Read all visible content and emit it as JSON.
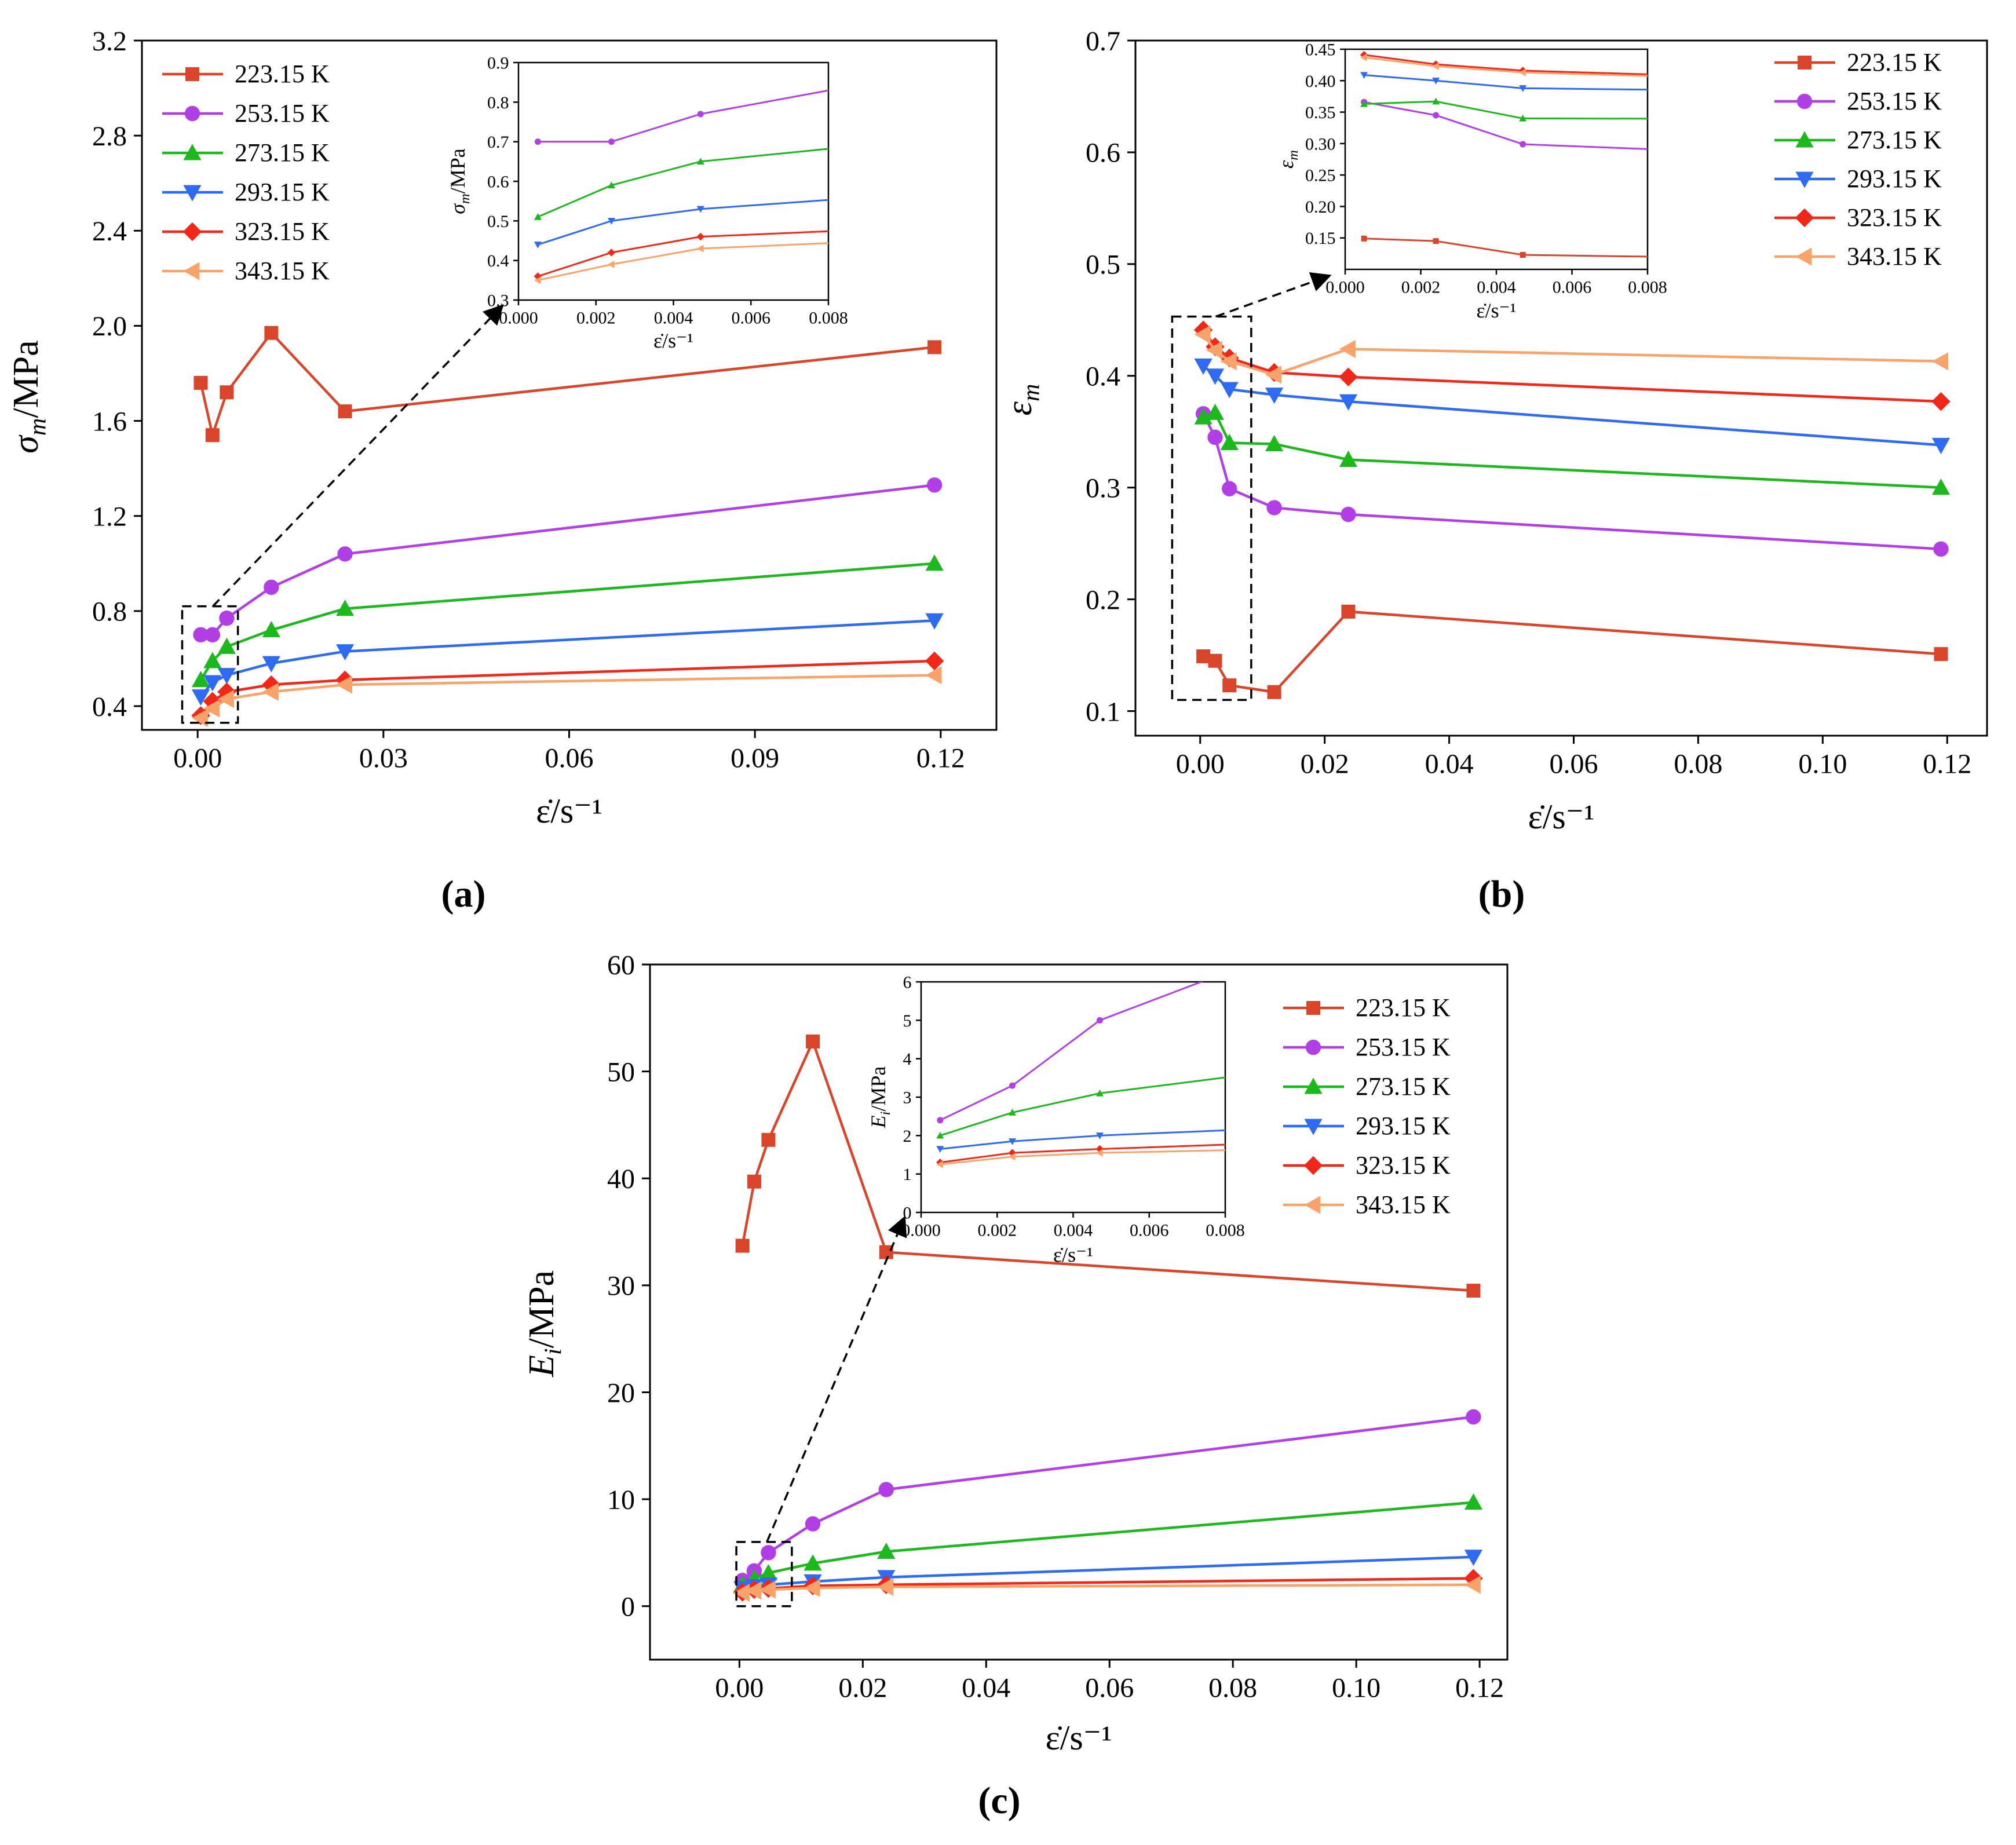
{
  "figure": {
    "panel_labels": [
      "(a)",
      "(b)",
      "(c)"
    ],
    "x_label": "ε̇/s⁻¹"
  },
  "series_meta": [
    {
      "name": "223.15 K",
      "color": "#D8452B",
      "marker": "square"
    },
    {
      "name": "253.15 K",
      "color": "#B23EE6",
      "marker": "circle"
    },
    {
      "name": "273.15 K",
      "color": "#1DB81D",
      "marker": "triangle-up"
    },
    {
      "name": "293.15 K",
      "color": "#2F6BF0",
      "marker": "triangle-down"
    },
    {
      "name": "323.15 K",
      "color": "#F0281A",
      "marker": "diamond"
    },
    {
      "name": "343.15 K",
      "color": "#F7A36B",
      "marker": "triangle-left"
    }
  ],
  "chart_data": [
    {
      "type": "line",
      "panel": "(a)",
      "ylabel": "σm/MPa",
      "xlabel": "ε̇/s⁻¹",
      "xlim": [
        -0.009,
        0.129
      ],
      "ylim": [
        0.3,
        3.2
      ],
      "xticks": [
        0,
        0.03,
        0.06,
        0.09,
        0.12
      ],
      "xtick_labels": [
        "0.00",
        "0.03",
        "0.06",
        "0.09",
        "0.12"
      ],
      "yticks": [
        0.4,
        0.8,
        1.2,
        1.6,
        2.0,
        2.4,
        2.8,
        3.2
      ],
      "ytick_labels": [
        "0.4",
        "0.8",
        "1.2",
        "1.6",
        "2.0",
        "2.4",
        "2.8",
        "3.2"
      ],
      "legend_position": "top-left",
      "x": [
        0.0005,
        0.0024,
        0.0047,
        0.0119,
        0.0238,
        0.119
      ],
      "series": [
        {
          "name": "223.15 K",
          "values": [
            1.76,
            1.54,
            1.72,
            1.97,
            1.64,
            1.91
          ]
        },
        {
          "name": "253.15 K",
          "values": [
            0.7,
            0.7,
            0.77,
            0.9,
            1.04,
            1.33
          ]
        },
        {
          "name": "273.15 K",
          "values": [
            0.51,
            0.59,
            0.65,
            0.72,
            0.81,
            1.0
          ]
        },
        {
          "name": "293.15 K",
          "values": [
            0.44,
            0.5,
            0.53,
            0.58,
            0.63,
            0.76
          ]
        },
        {
          "name": "323.15 K",
          "values": [
            0.36,
            0.42,
            0.46,
            0.49,
            0.51,
            0.59
          ]
        },
        {
          "name": "343.15 K",
          "values": [
            0.35,
            0.39,
            0.43,
            0.46,
            0.49,
            0.53
          ]
        }
      ],
      "zoom_box": {
        "x": [
          -0.0025,
          0.0065
        ],
        "y": [
          0.33,
          0.82
        ]
      },
      "inset": {
        "ylabel": "σm/MPa",
        "xlabel": "ε̇/s⁻¹",
        "xlim": [
          0,
          0.008
        ],
        "ylim": [
          0.3,
          0.9
        ],
        "xticks": [
          0,
          0.002,
          0.004,
          0.006,
          0.008
        ],
        "xtick_labels": [
          "0.000",
          "0.002",
          "0.004",
          "0.006",
          "0.008"
        ],
        "yticks": [
          0.3,
          0.4,
          0.5,
          0.6,
          0.7,
          0.8,
          0.9
        ],
        "ytick_labels": [
          "0.3",
          "0.4",
          "0.5",
          "0.6",
          "0.7",
          "0.8",
          "0.9"
        ]
      }
    },
    {
      "type": "line",
      "panel": "(b)",
      "ylabel": "εm",
      "xlabel": "ε̇/s⁻¹",
      "xlim": [
        -0.0104,
        0.1264
      ],
      "ylim": [
        0.078,
        0.7
      ],
      "xticks": [
        0,
        0.02,
        0.04,
        0.06,
        0.08,
        0.1,
        0.12
      ],
      "xtick_labels": [
        "0.00",
        "0.02",
        "0.04",
        "0.06",
        "0.08",
        "0.10",
        "0.12"
      ],
      "yticks": [
        0.1,
        0.2,
        0.3,
        0.4,
        0.5,
        0.6,
        0.7
      ],
      "ytick_labels": [
        "0.1",
        "0.2",
        "0.3",
        "0.4",
        "0.5",
        "0.6",
        "0.7"
      ],
      "legend_position": "top-right",
      "x": [
        0.0005,
        0.0024,
        0.0047,
        0.0119,
        0.0238,
        0.119
      ],
      "series": [
        {
          "name": "223.15 K",
          "values": [
            0.149,
            0.145,
            0.123,
            0.117,
            0.189,
            0.151
          ]
        },
        {
          "name": "253.15 K",
          "values": [
            0.366,
            0.345,
            0.299,
            0.282,
            0.276,
            0.245
          ]
        },
        {
          "name": "273.15 K",
          "values": [
            0.363,
            0.367,
            0.34,
            0.339,
            0.325,
            0.3
          ]
        },
        {
          "name": "293.15 K",
          "values": [
            0.409,
            0.4,
            0.388,
            0.383,
            0.377,
            0.338
          ]
        },
        {
          "name": "323.15 K",
          "values": [
            0.441,
            0.426,
            0.416,
            0.403,
            0.399,
            0.377
          ]
        },
        {
          "name": "343.15 K",
          "values": [
            0.437,
            0.423,
            0.413,
            0.401,
            0.424,
            0.413
          ]
        }
      ],
      "zoom_box": {
        "x": [
          -0.0045,
          0.0082
        ],
        "y": [
          0.11,
          0.453
        ]
      },
      "inset": {
        "ylabel": "εm",
        "xlabel": "ε̇/s⁻¹",
        "xlim": [
          0,
          0.008
        ],
        "ylim": [
          0.1,
          0.45
        ],
        "xticks": [
          0,
          0.002,
          0.004,
          0.006,
          0.008
        ],
        "xtick_labels": [
          "0.000",
          "0.002",
          "0.004",
          "0.006",
          "0.008"
        ],
        "yticks": [
          0.15,
          0.2,
          0.25,
          0.3,
          0.35,
          0.4,
          0.45
        ],
        "ytick_labels": [
          "0.15",
          "0.20",
          "0.25",
          "0.30",
          "0.35",
          "0.40",
          "0.45"
        ]
      }
    },
    {
      "type": "line",
      "panel": "(c)",
      "ylabel": "Ei/MPa",
      "xlabel": "ε̇/s⁻¹",
      "xlim": [
        -0.0145,
        0.1245
      ],
      "ylim": [
        -5,
        60
      ],
      "xticks": [
        0,
        0.02,
        0.04,
        0.06,
        0.08,
        0.1,
        0.12
      ],
      "xtick_labels": [
        "0.00",
        "0.02",
        "0.04",
        "0.06",
        "0.08",
        "0.10",
        "0.12"
      ],
      "yticks": [
        0,
        10,
        20,
        30,
        40,
        50,
        60
      ],
      "ytick_labels": [
        "0",
        "10",
        "20",
        "30",
        "40",
        "50",
        "60"
      ],
      "legend_position": "top-right",
      "x": [
        0.0005,
        0.0024,
        0.0047,
        0.0119,
        0.0238,
        0.119
      ],
      "series": [
        {
          "name": "223.15 K",
          "values": [
            33.7,
            39.7,
            43.6,
            52.8,
            33.1,
            29.5
          ]
        },
        {
          "name": "253.15 K",
          "values": [
            2.4,
            3.3,
            5.0,
            7.7,
            10.9,
            17.7
          ]
        },
        {
          "name": "273.15 K",
          "values": [
            2.0,
            2.6,
            3.1,
            4.0,
            5.1,
            9.7
          ]
        },
        {
          "name": "293.15 K",
          "values": [
            1.65,
            1.85,
            2.0,
            2.3,
            2.7,
            4.6
          ]
        },
        {
          "name": "323.15 K",
          "values": [
            1.3,
            1.55,
            1.65,
            1.9,
            2.0,
            2.6
          ]
        },
        {
          "name": "343.15 K",
          "values": [
            1.25,
            1.45,
            1.55,
            1.7,
            1.8,
            2.0
          ]
        }
      ],
      "zoom_box": {
        "x": [
          -0.0005,
          0.0085
        ],
        "y": [
          0,
          6
        ]
      },
      "inset": {
        "ylabel": "Ei/MPa",
        "xlabel": "ε̇/s⁻¹",
        "xlim": [
          0,
          0.008
        ],
        "ylim": [
          0,
          6
        ],
        "xticks": [
          0,
          0.002,
          0.004,
          0.006,
          0.008
        ],
        "xtick_labels": [
          "0.000",
          "0.002",
          "0.004",
          "0.006",
          "0.008"
        ],
        "yticks": [
          0,
          1,
          2,
          3,
          4,
          5,
          6
        ],
        "ytick_labels": [
          "0",
          "1",
          "2",
          "3",
          "4",
          "5",
          "6"
        ]
      }
    }
  ]
}
